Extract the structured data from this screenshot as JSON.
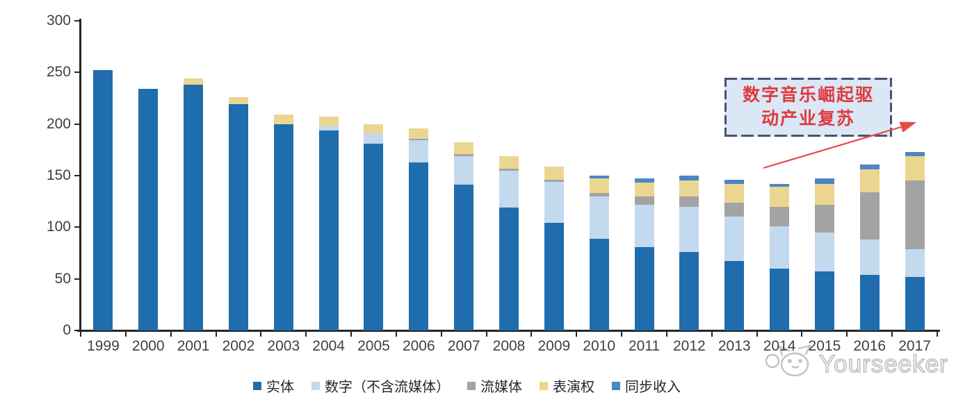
{
  "chart_data": {
    "type": "bar",
    "stacked": true,
    "title": "",
    "categories": [
      "1999",
      "2000",
      "2001",
      "2002",
      "2003",
      "2004",
      "2005",
      "2006",
      "2007",
      "2008",
      "2009",
      "2010",
      "2011",
      "2012",
      "2013",
      "2014",
      "2015",
      "2016",
      "2017"
    ],
    "series": [
      {
        "name": "实体",
        "color": "#1F6DAD",
        "values": [
          252,
          234,
          238,
          219,
          200,
          194,
          181,
          163,
          141,
          119,
          104,
          89,
          81,
          76,
          67,
          60,
          57,
          54,
          52
        ]
      },
      {
        "name": "数字（不含流媒体）",
        "color": "#C3D9EE",
        "values": [
          0,
          0,
          0,
          0,
          0,
          4,
          10,
          21,
          28,
          36,
          40,
          41,
          41,
          44,
          43,
          41,
          38,
          34,
          27
        ]
      },
      {
        "name": "流媒体",
        "color": "#A3A3A3",
        "values": [
          0,
          0,
          0,
          0,
          0,
          0,
          0,
          1.5,
          2,
          2,
          2,
          3,
          8,
          10,
          14,
          19,
          27,
          46,
          66
        ]
      },
      {
        "name": "表演权",
        "color": "#EBD691",
        "values": [
          0,
          0,
          6,
          7,
          9,
          9,
          9,
          10.5,
          11,
          12,
          13,
          14,
          13,
          15,
          18,
          19,
          20,
          22,
          24
        ]
      },
      {
        "name": "同步收入",
        "color": "#4C86C4",
        "values": [
          0,
          0,
          0,
          0,
          0,
          0,
          0,
          0,
          0,
          0,
          0,
          3,
          4,
          5,
          4,
          3,
          5,
          5,
          4
        ]
      }
    ],
    "ylim": [
      0,
      300
    ],
    "yticks": [
      0,
      50,
      100,
      150,
      200,
      250,
      300
    ],
    "grid": false,
    "legend_position": "bottom",
    "axis_label_color": "#404040",
    "axis_line_color": "#262626"
  },
  "annotation": {
    "line1": "数字音乐崛起驱",
    "line2": "动产业复苏",
    "text_color": "#DF3A3E",
    "box_bg": "#DBE7F4",
    "border_color": "#44546A",
    "arrow_color": "#E8474B"
  },
  "watermark": {
    "brand": "Yourseeker",
    "logo": "cat-logo",
    "color": "#BDBDBD"
  }
}
